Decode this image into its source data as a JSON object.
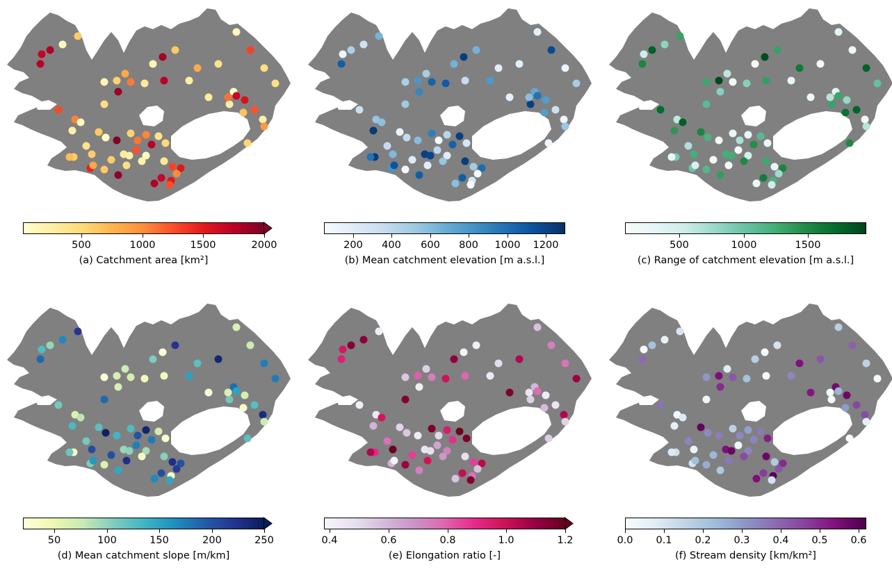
{
  "map": {
    "land_color": "#808080",
    "background_color": "#ffffff",
    "ice_color": "#ffffff"
  },
  "panels": [
    {
      "id": "a",
      "label": "(a) Catchment area [km²]",
      "colormap": [
        "#ffffcc",
        "#ffeda0",
        "#fed976",
        "#feb24c",
        "#fd8d3c",
        "#fc4e2a",
        "#e31a1c",
        "#bd0026",
        "#800026"
      ],
      "range": [
        20,
        2000
      ],
      "ticks": [
        "500",
        "1000",
        "1500",
        "2000"
      ],
      "tick_values": [
        500,
        1000,
        1500,
        2000
      ],
      "extend": "max"
    },
    {
      "id": "b",
      "label": "(b) Mean catchment elevation [m a.s.l.]",
      "colormap": [
        "#f7fbff",
        "#deebf7",
        "#c6dbef",
        "#9ecae1",
        "#6baed6",
        "#4292c6",
        "#2171b5",
        "#08519c",
        "#08306b"
      ],
      "range": [
        50,
        1300
      ],
      "ticks": [
        "200",
        "400",
        "600",
        "800",
        "1000",
        "1200"
      ],
      "tick_values": [
        200,
        400,
        600,
        800,
        1000,
        1200
      ],
      "extend": "none"
    },
    {
      "id": "c",
      "label": "(c) Range of catchment elevation [m a.s.l.]",
      "colormap": [
        "#f7fcf5",
        "#e5f5f9",
        "#ccece6",
        "#99d8c9",
        "#66c2a4",
        "#41ae76",
        "#238b45",
        "#006d2c",
        "#00441b"
      ],
      "range": [
        80,
        1950
      ],
      "ticks": [
        "500",
        "1000",
        "1500"
      ],
      "tick_values": [
        500,
        1000,
        1500
      ],
      "extend": "none"
    },
    {
      "id": "d",
      "label": "(d) Mean catchment slope [m/km]",
      "colormap": [
        "#ffffd9",
        "#edf8b1",
        "#c7e9b4",
        "#7fcdbb",
        "#41b6c4",
        "#1d91c0",
        "#225ea8",
        "#253494",
        "#081d58"
      ],
      "range": [
        20,
        250
      ],
      "ticks": [
        "50",
        "100",
        "150",
        "200",
        "250"
      ],
      "tick_values": [
        50,
        100,
        150,
        200,
        250
      ],
      "extend": "max"
    },
    {
      "id": "e",
      "label": "(e) Elongation ratio [-]",
      "colormap": [
        "#f7f4f9",
        "#e7e1ef",
        "#d4b9da",
        "#c994c7",
        "#df65b0",
        "#e7298a",
        "#ce1256",
        "#980043",
        "#67001f"
      ],
      "range": [
        0.38,
        1.2
      ],
      "ticks": [
        "0.4",
        "0.6",
        "0.8",
        "1.0",
        "1.2"
      ],
      "tick_values": [
        0.4,
        0.6,
        0.8,
        1.0,
        1.2
      ],
      "extend": "max"
    },
    {
      "id": "f",
      "label": "(f) Stream density [km/km²]",
      "colormap": [
        "#f7fcfd",
        "#e0ecf4",
        "#bfd3e6",
        "#9ebcda",
        "#8c96c6",
        "#8c6bb1",
        "#88419d",
        "#810f7c",
        "#4d004b"
      ],
      "range": [
        0.0,
        0.62
      ],
      "ticks": [
        "0.0",
        "0.1",
        "0.2",
        "0.3",
        "0.4",
        "0.5",
        "0.6"
      ],
      "tick_values": [
        0.0,
        0.1,
        0.2,
        0.3,
        0.4,
        0.5,
        0.6
      ],
      "extend": "none"
    }
  ]
}
